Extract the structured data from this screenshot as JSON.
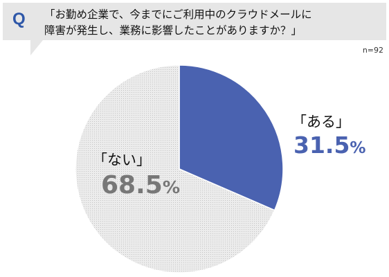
{
  "header": {
    "q_letter": "Q",
    "question_line1": "「お勤め企業で、今までにご利用中のクラウドメールに",
    "question_line2": "障害が発生し、業務に影響したことがありますか？」",
    "sample_size": "n=92"
  },
  "colors": {
    "banner_bg": "#e6e6e6",
    "accent": "#2e57a8",
    "slice_aru": "#4a62b0",
    "slice_nai": "#e8e8e8"
  },
  "chart_data": {
    "type": "pie",
    "title": "",
    "slices": [
      {
        "label": "「ある」",
        "value": 31.5,
        "display_value": "31.5",
        "unit": "%",
        "color": "#4a62b0"
      },
      {
        "label": "「ない」",
        "value": 68.5,
        "display_value": "68.5",
        "unit": "%",
        "color": "#e8e8e8"
      }
    ],
    "start": "12 o'clock",
    "direction": "clockwise"
  }
}
